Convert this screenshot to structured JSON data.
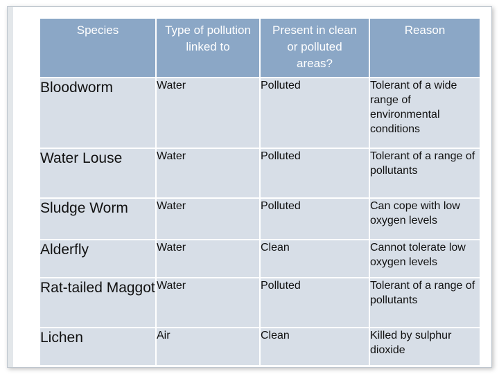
{
  "table": {
    "headers": [
      "Species",
      "Type of pollution linked to",
      "Present in clean or polluted areas?",
      "Reason"
    ],
    "rows": [
      {
        "species": "Bloodworm",
        "type": "Water",
        "present": "Polluted",
        "reason": "Tolerant of a wide range of environmental conditions"
      },
      {
        "species": "Water Louse",
        "type": "Water",
        "present": "Polluted",
        "reason": "Tolerant of a range of pollutants"
      },
      {
        "species": "Sludge Worm",
        "type": "Water",
        "present": "Polluted",
        "reason": "Can cope with low oxygen levels"
      },
      {
        "species": "Alderfly",
        "type": "Water",
        "present": "Clean",
        "reason": "Cannot tolerate low oxygen levels"
      },
      {
        "species": "Rat-tailed Maggot",
        "type": "Water",
        "present": "Polluted",
        "reason": "Tolerant of a range of pollutants"
      },
      {
        "species": "Lichen",
        "type": "Air",
        "present": "Clean",
        "reason": "Killed by sulphur dioxide"
      }
    ]
  }
}
